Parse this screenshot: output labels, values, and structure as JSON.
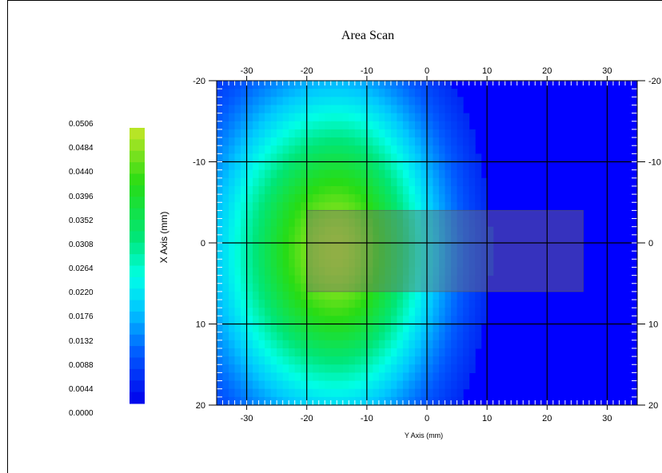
{
  "chart_data": {
    "type": "heatmap",
    "title": "Area Scan",
    "xlabel": "Y Axis (mm)",
    "ylabel": "X Axis (mm)",
    "xlim": [
      -35,
      35
    ],
    "ylim": [
      -20,
      20
    ],
    "x_ticks": [
      -30,
      -20,
      -10,
      0,
      10,
      20,
      30
    ],
    "y_ticks": [
      -20,
      -10,
      0,
      10,
      20
    ],
    "grid": true,
    "colorbar": {
      "labels": [
        "0.0506",
        "0.0484",
        "0.0440",
        "0.0396",
        "0.0352",
        "0.0308",
        "0.0264",
        "0.0220",
        "0.0176",
        "0.0132",
        "0.0088",
        "0.0044",
        "0.0000"
      ],
      "min": 0.0,
      "max": 0.0506,
      "placement": "left"
    },
    "peak": {
      "x": -15,
      "y": 1,
      "value": 0.0484
    },
    "device_outline": {
      "x_range": [
        -20,
        26
      ],
      "y_range": [
        -4,
        6
      ]
    }
  },
  "colors": {
    "low": "#0000ff",
    "mid": "#00ffff",
    "high": "#ccff00",
    "grid": "#000000",
    "tick": "#ffffff"
  }
}
